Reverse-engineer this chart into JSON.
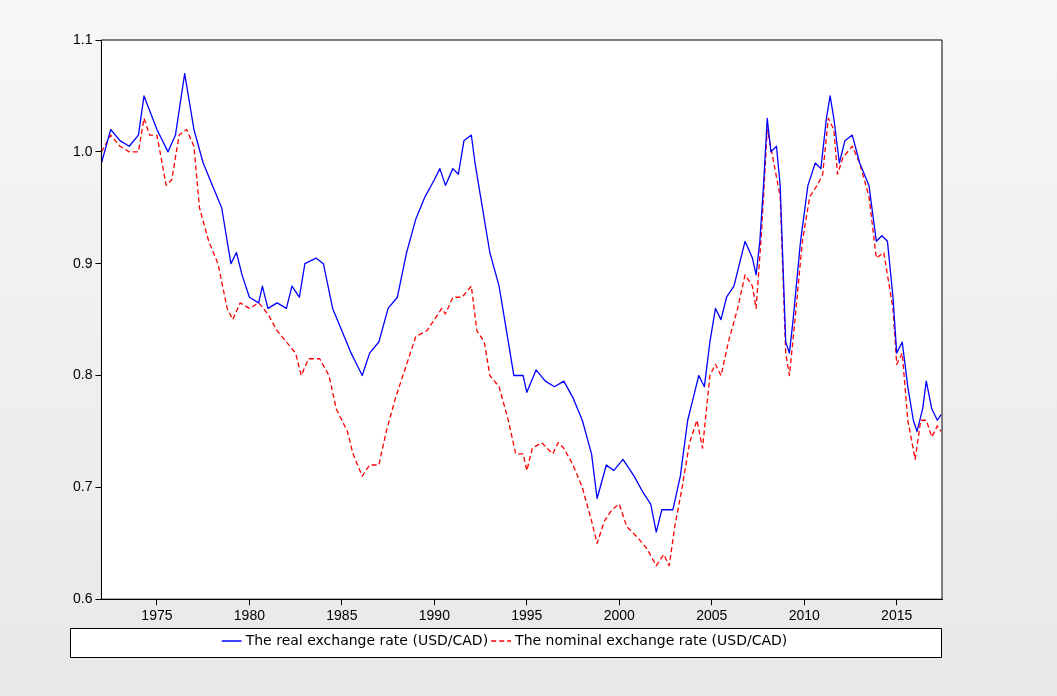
{
  "chart_data": {
    "type": "line",
    "xlim": [
      1972,
      2017.45
    ],
    "xticks": [
      1975,
      1980,
      1985,
      1990,
      1995,
      2000,
      2005,
      2010,
      2015
    ],
    "ylim": [
      0.6,
      1.1
    ],
    "yticks": [
      0.6,
      0.7,
      0.8,
      0.9,
      {
        "value": 1,
        "label": "1.0"
      },
      1.1
    ],
    "grid": false,
    "legend": "bottom",
    "marker": "none",
    "series": [
      {
        "name": "The real exchange rate (USD/CAD)",
        "color": "#0000ff",
        "line_style": "solid",
        "x": [
          1972.0,
          1972.5,
          1973.0,
          1973.5,
          1974.0,
          1974.3,
          1975.0,
          1975.6,
          1976.0,
          1976.5,
          1977.0,
          1977.5,
          1978.0,
          1978.5,
          1979.0,
          1979.3,
          1979.6,
          1980.0,
          1980.5,
          1980.7,
          1981.0,
          1981.5,
          1982.0,
          1982.3,
          1982.7,
          1983.0,
          1983.6,
          1984.0,
          1984.5,
          1985.0,
          1985.5,
          1985.8,
          1986.1,
          1986.5,
          1987.0,
          1987.5,
          1988.0,
          1988.5,
          1989.0,
          1989.5,
          1990.0,
          1990.3,
          1990.6,
          1991.0,
          1991.3,
          1991.6,
          1992.0,
          1992.2,
          1992.5,
          1993.0,
          1993.5,
          1994.0,
          1994.3,
          1994.8,
          1995.0,
          1995.5,
          1996.0,
          1996.5,
          1997.0,
          1997.5,
          1998.0,
          1998.5,
          1998.8,
          1999.3,
          1999.7,
          2000.2,
          2000.8,
          2001.3,
          2001.7,
          2002.0,
          2002.3,
          2002.9,
          2003.3,
          2003.7,
          2004.0,
          2004.3,
          2004.6,
          2004.9,
          2005.2,
          2005.5,
          2005.8,
          2006.2,
          2006.8,
          2007.2,
          2007.4,
          2007.6,
          2007.8,
          2008.0,
          2008.2,
          2008.5,
          2008.7,
          2009.0,
          2009.2,
          2009.4,
          2009.8,
          2010.2,
          2010.6,
          2010.9,
          2011.2,
          2011.4,
          2011.6,
          2011.9,
          2012.2,
          2012.6,
          2013.0,
          2013.5,
          2013.9,
          2014.2,
          2014.5,
          2014.8,
          2015.0,
          2015.3,
          2015.6,
          2015.9,
          2016.1,
          2016.4,
          2016.6,
          2016.9,
          2017.2,
          2017.4
        ],
        "values": [
          0.99,
          1.02,
          1.01,
          1.005,
          1.015,
          1.05,
          1.02,
          1.0,
          1.015,
          1.07,
          1.02,
          0.99,
          0.97,
          0.95,
          0.9,
          0.91,
          0.89,
          0.87,
          0.865,
          0.88,
          0.86,
          0.865,
          0.86,
          0.88,
          0.87,
          0.9,
          0.905,
          0.9,
          0.86,
          0.84,
          0.82,
          0.81,
          0.8,
          0.82,
          0.83,
          0.86,
          0.87,
          0.91,
          0.94,
          0.96,
          0.975,
          0.985,
          0.97,
          0.985,
          0.98,
          1.01,
          1.015,
          0.99,
          0.96,
          0.91,
          0.88,
          0.83,
          0.8,
          0.8,
          0.785,
          0.805,
          0.795,
          0.79,
          0.795,
          0.78,
          0.76,
          0.73,
          0.69,
          0.72,
          0.715,
          0.725,
          0.71,
          0.695,
          0.685,
          0.66,
          0.68,
          0.68,
          0.71,
          0.76,
          0.78,
          0.8,
          0.79,
          0.83,
          0.86,
          0.85,
          0.87,
          0.88,
          0.92,
          0.905,
          0.89,
          0.92,
          0.97,
          1.03,
          1.0,
          1.005,
          0.97,
          0.83,
          0.82,
          0.85,
          0.92,
          0.97,
          0.99,
          0.985,
          1.03,
          1.05,
          1.03,
          0.99,
          1.01,
          1.015,
          0.99,
          0.97,
          0.92,
          0.925,
          0.92,
          0.87,
          0.82,
          0.83,
          0.79,
          0.76,
          0.75,
          0.77,
          0.795,
          0.77,
          0.76,
          0.765
        ]
      },
      {
        "name": "The nominal exchange rate (USD/CAD)",
        "color": "#ff0000",
        "line_style": "dashed",
        "x": [
          1972.0,
          1972.5,
          1973.0,
          1973.5,
          1974.0,
          1974.3,
          1974.6,
          1975.0,
          1975.5,
          1975.8,
          1976.2,
          1976.6,
          1977.0,
          1977.3,
          1977.8,
          1978.3,
          1978.8,
          1979.1,
          1979.5,
          1980.0,
          1980.5,
          1981.0,
          1981.5,
          1982.0,
          1982.5,
          1982.8,
          1983.2,
          1983.8,
          1984.3,
          1984.7,
          1985.3,
          1985.6,
          1986.1,
          1986.5,
          1987.0,
          1987.4,
          1987.9,
          1988.5,
          1989.0,
          1989.6,
          1990.0,
          1990.4,
          1990.6,
          1991.0,
          1991.5,
          1992.0,
          1992.3,
          1992.7,
          1993.0,
          1993.5,
          1994.0,
          1994.4,
          1994.8,
          1995.0,
          1995.3,
          1995.8,
          1996.4,
          1996.7,
          1997.0,
          1997.5,
          1998.0,
          1998.5,
          1998.8,
          1999.2,
          1999.6,
          2000.0,
          2000.4,
          2001.0,
          2001.5,
          2002.0,
          2002.4,
          2002.7,
          2003.0,
          2003.4,
          2003.8,
          2004.2,
          2004.5,
          2004.9,
          2005.2,
          2005.5,
          2005.9,
          2006.4,
          2006.8,
          2007.2,
          2007.4,
          2007.7,
          2008.0,
          2008.3,
          2008.7,
          2009.0,
          2009.2,
          2009.5,
          2009.9,
          2010.3,
          2010.7,
          2011.0,
          2011.3,
          2011.6,
          2011.8,
          2012.1,
          2012.6,
          2013.0,
          2013.5,
          2013.9,
          2014.3,
          2014.8,
          2015.0,
          2015.3,
          2015.6,
          2016.0,
          2016.3,
          2016.6,
          2016.9,
          2017.2,
          2017.4
        ],
        "values": [
          1.0,
          1.015,
          1.005,
          1.0,
          1.0,
          1.03,
          1.015,
          1.015,
          0.97,
          0.975,
          1.015,
          1.02,
          1.005,
          0.95,
          0.92,
          0.9,
          0.86,
          0.85,
          0.865,
          0.86,
          0.865,
          0.855,
          0.84,
          0.83,
          0.82,
          0.8,
          0.815,
          0.815,
          0.8,
          0.77,
          0.75,
          0.73,
          0.71,
          0.72,
          0.72,
          0.75,
          0.78,
          0.81,
          0.835,
          0.84,
          0.85,
          0.86,
          0.855,
          0.87,
          0.87,
          0.88,
          0.84,
          0.83,
          0.8,
          0.79,
          0.76,
          0.73,
          0.73,
          0.715,
          0.735,
          0.74,
          0.73,
          0.74,
          0.735,
          0.72,
          0.7,
          0.67,
          0.65,
          0.67,
          0.68,
          0.685,
          0.665,
          0.655,
          0.645,
          0.63,
          0.64,
          0.63,
          0.665,
          0.7,
          0.74,
          0.76,
          0.735,
          0.8,
          0.81,
          0.8,
          0.83,
          0.86,
          0.89,
          0.88,
          0.86,
          0.93,
          1.02,
          0.995,
          0.96,
          0.82,
          0.8,
          0.85,
          0.92,
          0.96,
          0.97,
          0.98,
          1.03,
          1.02,
          0.98,
          0.995,
          1.005,
          0.99,
          0.96,
          0.905,
          0.91,
          0.86,
          0.81,
          0.82,
          0.76,
          0.725,
          0.76,
          0.76,
          0.745,
          0.755,
          0.75
        ]
      }
    ]
  }
}
